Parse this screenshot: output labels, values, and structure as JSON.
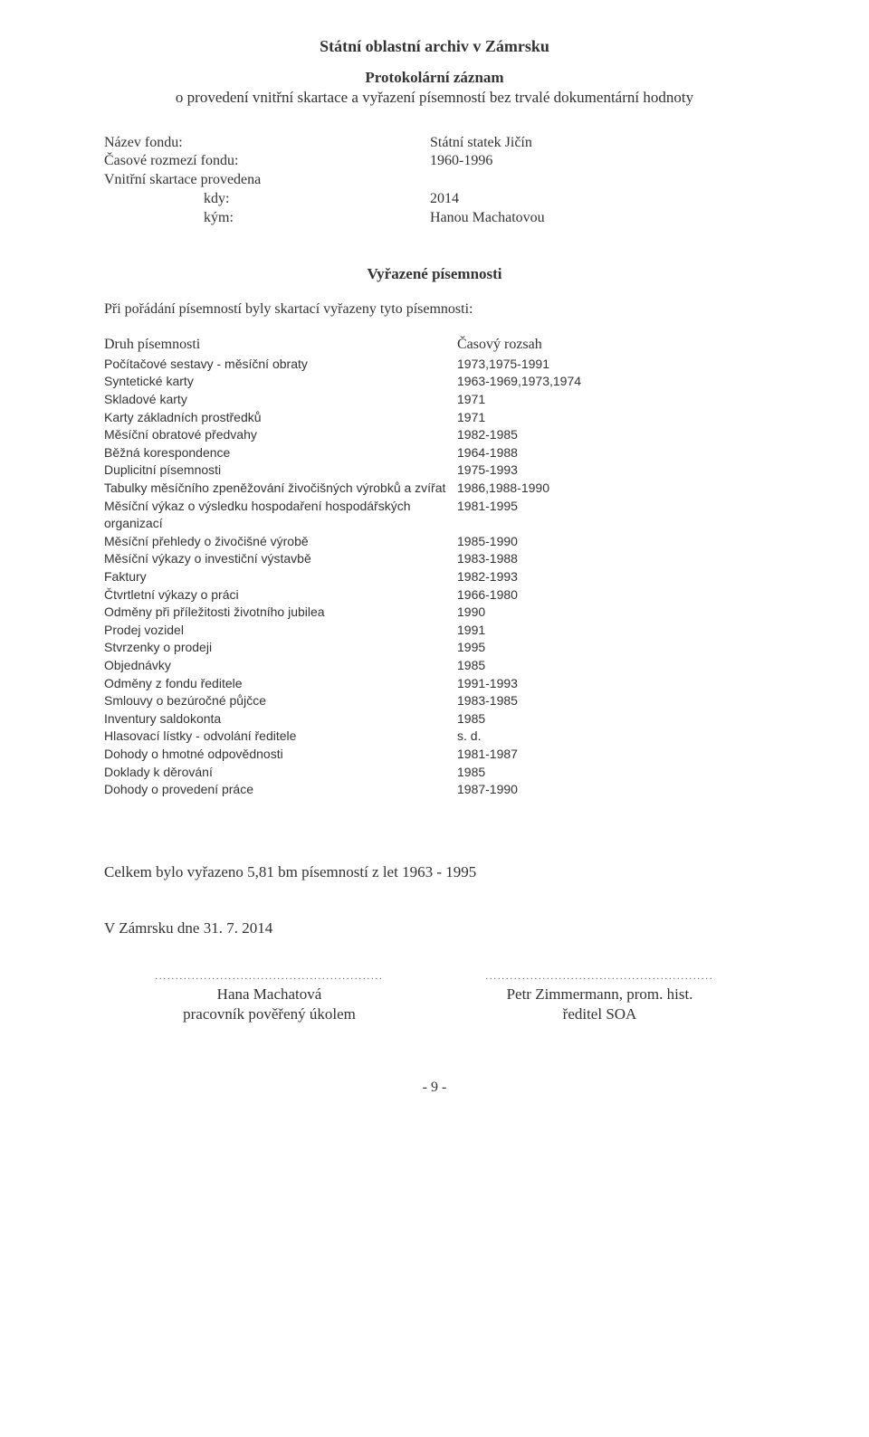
{
  "header": {
    "main_title": "Státní oblastní archiv v Zámrsku",
    "subtitle1": "Protokolární záznam",
    "subtitle2": "o provedení vnitřní skartace a vyřazení písemností bez trvalé dokumentární hodnoty"
  },
  "meta": {
    "fund_name_label": "Název fondu:",
    "fund_name_value": "Státní statek Jičín",
    "range_label": "Časové rozmezí fondu:",
    "range_value": "1960-1996",
    "done_label": "Vnitřní skartace provedena",
    "when_label": "kdy:",
    "when_value": "2014",
    "by_label": "kým:",
    "by_value": "Hanou Machatovou"
  },
  "section_heading": "Vyřazené písemnosti",
  "intro_text": "Při pořádání písemností byly skartací vyřazeny tyto písemnosti:",
  "table": {
    "header_left": "Druh písemnosti",
    "header_right": "Časový rozsah",
    "rows": [
      {
        "label": "Počítačové sestavy - měsíční obraty",
        "value": "1973,1975-1991"
      },
      {
        "label": "Syntetické karty",
        "value": "1963-1969,1973,1974"
      },
      {
        "label": "Skladové karty",
        "value": "1971"
      },
      {
        "label": "Karty základních prostředků",
        "value": "1971"
      },
      {
        "label": "Měsíční obratové předvahy",
        "value": "1982-1985"
      },
      {
        "label": "Běžná korespondence",
        "value": "1964-1988"
      },
      {
        "label": "Duplicitní písemnosti",
        "value": "1975-1993"
      },
      {
        "label": "Tabulky měsíčního zpeněžování živočišných výrobků a zvířat",
        "value": "1986,1988-1990"
      },
      {
        "label": "Měsíční výkaz o výsledku hospodaření hospodářských organizací",
        "value": "1981-1995"
      },
      {
        "label": "Měsíční přehledy o živočišné výrobě",
        "value": "1985-1990"
      },
      {
        "label": "Měsíční výkazy o investiční výstavbě",
        "value": "1983-1988"
      },
      {
        "label": "Faktury",
        "value": "1982-1993"
      },
      {
        "label": "Čtvrtletní výkazy o práci",
        "value": "1966-1980"
      },
      {
        "label": "Odměny při příležitosti životního jubilea",
        "value": "1990"
      },
      {
        "label": "Prodej vozidel",
        "value": "1991"
      },
      {
        "label": "Stvrzenky o prodeji",
        "value": "1995"
      },
      {
        "label": "Objednávky",
        "value": "1985"
      },
      {
        "label": "Odměny z fondu ředitele",
        "value": "1991-1993"
      },
      {
        "label": "Smlouvy o bezúročné půjčce",
        "value": "1983-1985"
      },
      {
        "label": "Inventury saldokonta",
        "value": "1985"
      },
      {
        "label": "Hlasovací lístky - odvolání ředitele",
        "value": "s. d."
      },
      {
        "label": "Dohody o hmotné odpovědnosti",
        "value": "1981-1987"
      },
      {
        "label": "Doklady k děrování",
        "value": "1985"
      },
      {
        "label": "Dohody o provedení práce",
        "value": "1987-1990"
      }
    ]
  },
  "summary": "Celkem bylo vyřazeno 5,81 bm písemností z let 1963 - 1995",
  "date_line": "V Zámrsku dne 31. 7. 2014",
  "signatures": {
    "left_name": "Hana Machatová",
    "left_role": "pracovník pověřený úkolem",
    "right_name": "Petr Zimmermann, prom. hist.",
    "right_role": "ředitel SOA",
    "dots": "........................................................"
  },
  "page_number": "- 9 -"
}
